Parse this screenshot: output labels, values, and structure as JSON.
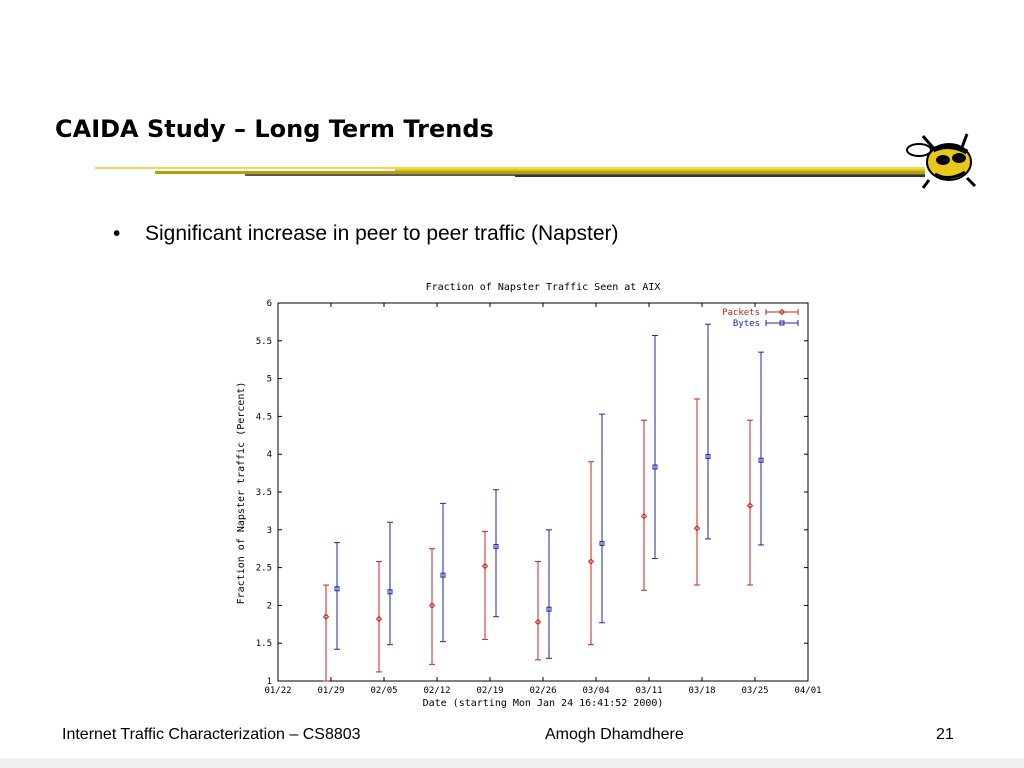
{
  "slide": {
    "title": "CAIDA Study – Long Term Trends",
    "bullet": "Significant increase in peer to peer traffic (Napster)",
    "bullet_marker": "•",
    "mascot_icon": "yellow-jacket-mascot"
  },
  "footer": {
    "left": "Internet Traffic Characterization – CS8803",
    "center": "Amogh Dhamdhere",
    "page_number": "21"
  },
  "colors": {
    "packets": "#cc2222",
    "bytes": "#1a2aa8",
    "title_rule": "#c8b400"
  },
  "chart_data": {
    "type": "line",
    "title": "Fraction of Napster Traffic Seen at AIX",
    "xlabel": "Date (starting Mon Jan 24 16:41:52 2000)",
    "ylabel": "Fraction of Napster traffic (Percent)",
    "x_ticks": [
      "01/22",
      "01/29",
      "02/05",
      "02/12",
      "02/19",
      "02/26",
      "03/04",
      "03/11",
      "03/18",
      "03/25",
      "04/01"
    ],
    "y_ticks": [
      "1",
      "1.5",
      "2",
      "2.5",
      "3",
      "3.5",
      "4",
      "4.5",
      "5",
      "5.5",
      "6"
    ],
    "ylim": [
      1,
      6
    ],
    "legend_position": "top-right",
    "error_bars": true,
    "grid": false,
    "series": [
      {
        "name": "Packets",
        "color": "#cc2222",
        "marker": "diamond",
        "points": [
          {
            "x": "01/29",
            "y": 1.85,
            "low": 1.0,
            "high": 2.27
          },
          {
            "x": "02/05",
            "y": 1.82,
            "low": 1.12,
            "high": 2.58
          },
          {
            "x": "02/12",
            "y": 2.0,
            "low": 1.22,
            "high": 2.75
          },
          {
            "x": "02/19",
            "y": 2.52,
            "low": 1.55,
            "high": 2.98
          },
          {
            "x": "02/26",
            "y": 1.78,
            "low": 1.28,
            "high": 2.58
          },
          {
            "x": "03/04",
            "y": 2.58,
            "low": 1.48,
            "high": 3.9
          },
          {
            "x": "03/11",
            "y": 3.18,
            "low": 2.2,
            "high": 4.45
          },
          {
            "x": "03/18",
            "y": 3.02,
            "low": 2.27,
            "high": 4.73
          },
          {
            "x": "03/25",
            "y": 3.32,
            "low": 2.27,
            "high": 4.45
          }
        ]
      },
      {
        "name": "Bytes",
        "color": "#1a2aa8",
        "marker": "square",
        "points": [
          {
            "x": "01/29",
            "y": 2.22,
            "low": 1.42,
            "high": 2.83
          },
          {
            "x": "02/05",
            "y": 2.18,
            "low": 1.48,
            "high": 3.1
          },
          {
            "x": "02/12",
            "y": 2.4,
            "low": 1.52,
            "high": 3.35
          },
          {
            "x": "02/19",
            "y": 2.78,
            "low": 1.85,
            "high": 3.53
          },
          {
            "x": "02/26",
            "y": 1.95,
            "low": 1.3,
            "high": 3.0
          },
          {
            "x": "03/04",
            "y": 2.82,
            "low": 1.77,
            "high": 4.53
          },
          {
            "x": "03/11",
            "y": 3.83,
            "low": 2.62,
            "high": 5.57
          },
          {
            "x": "03/18",
            "y": 3.97,
            "low": 2.88,
            "high": 5.72
          },
          {
            "x": "03/25",
            "y": 3.92,
            "low": 2.8,
            "high": 5.35
          }
        ]
      }
    ]
  }
}
